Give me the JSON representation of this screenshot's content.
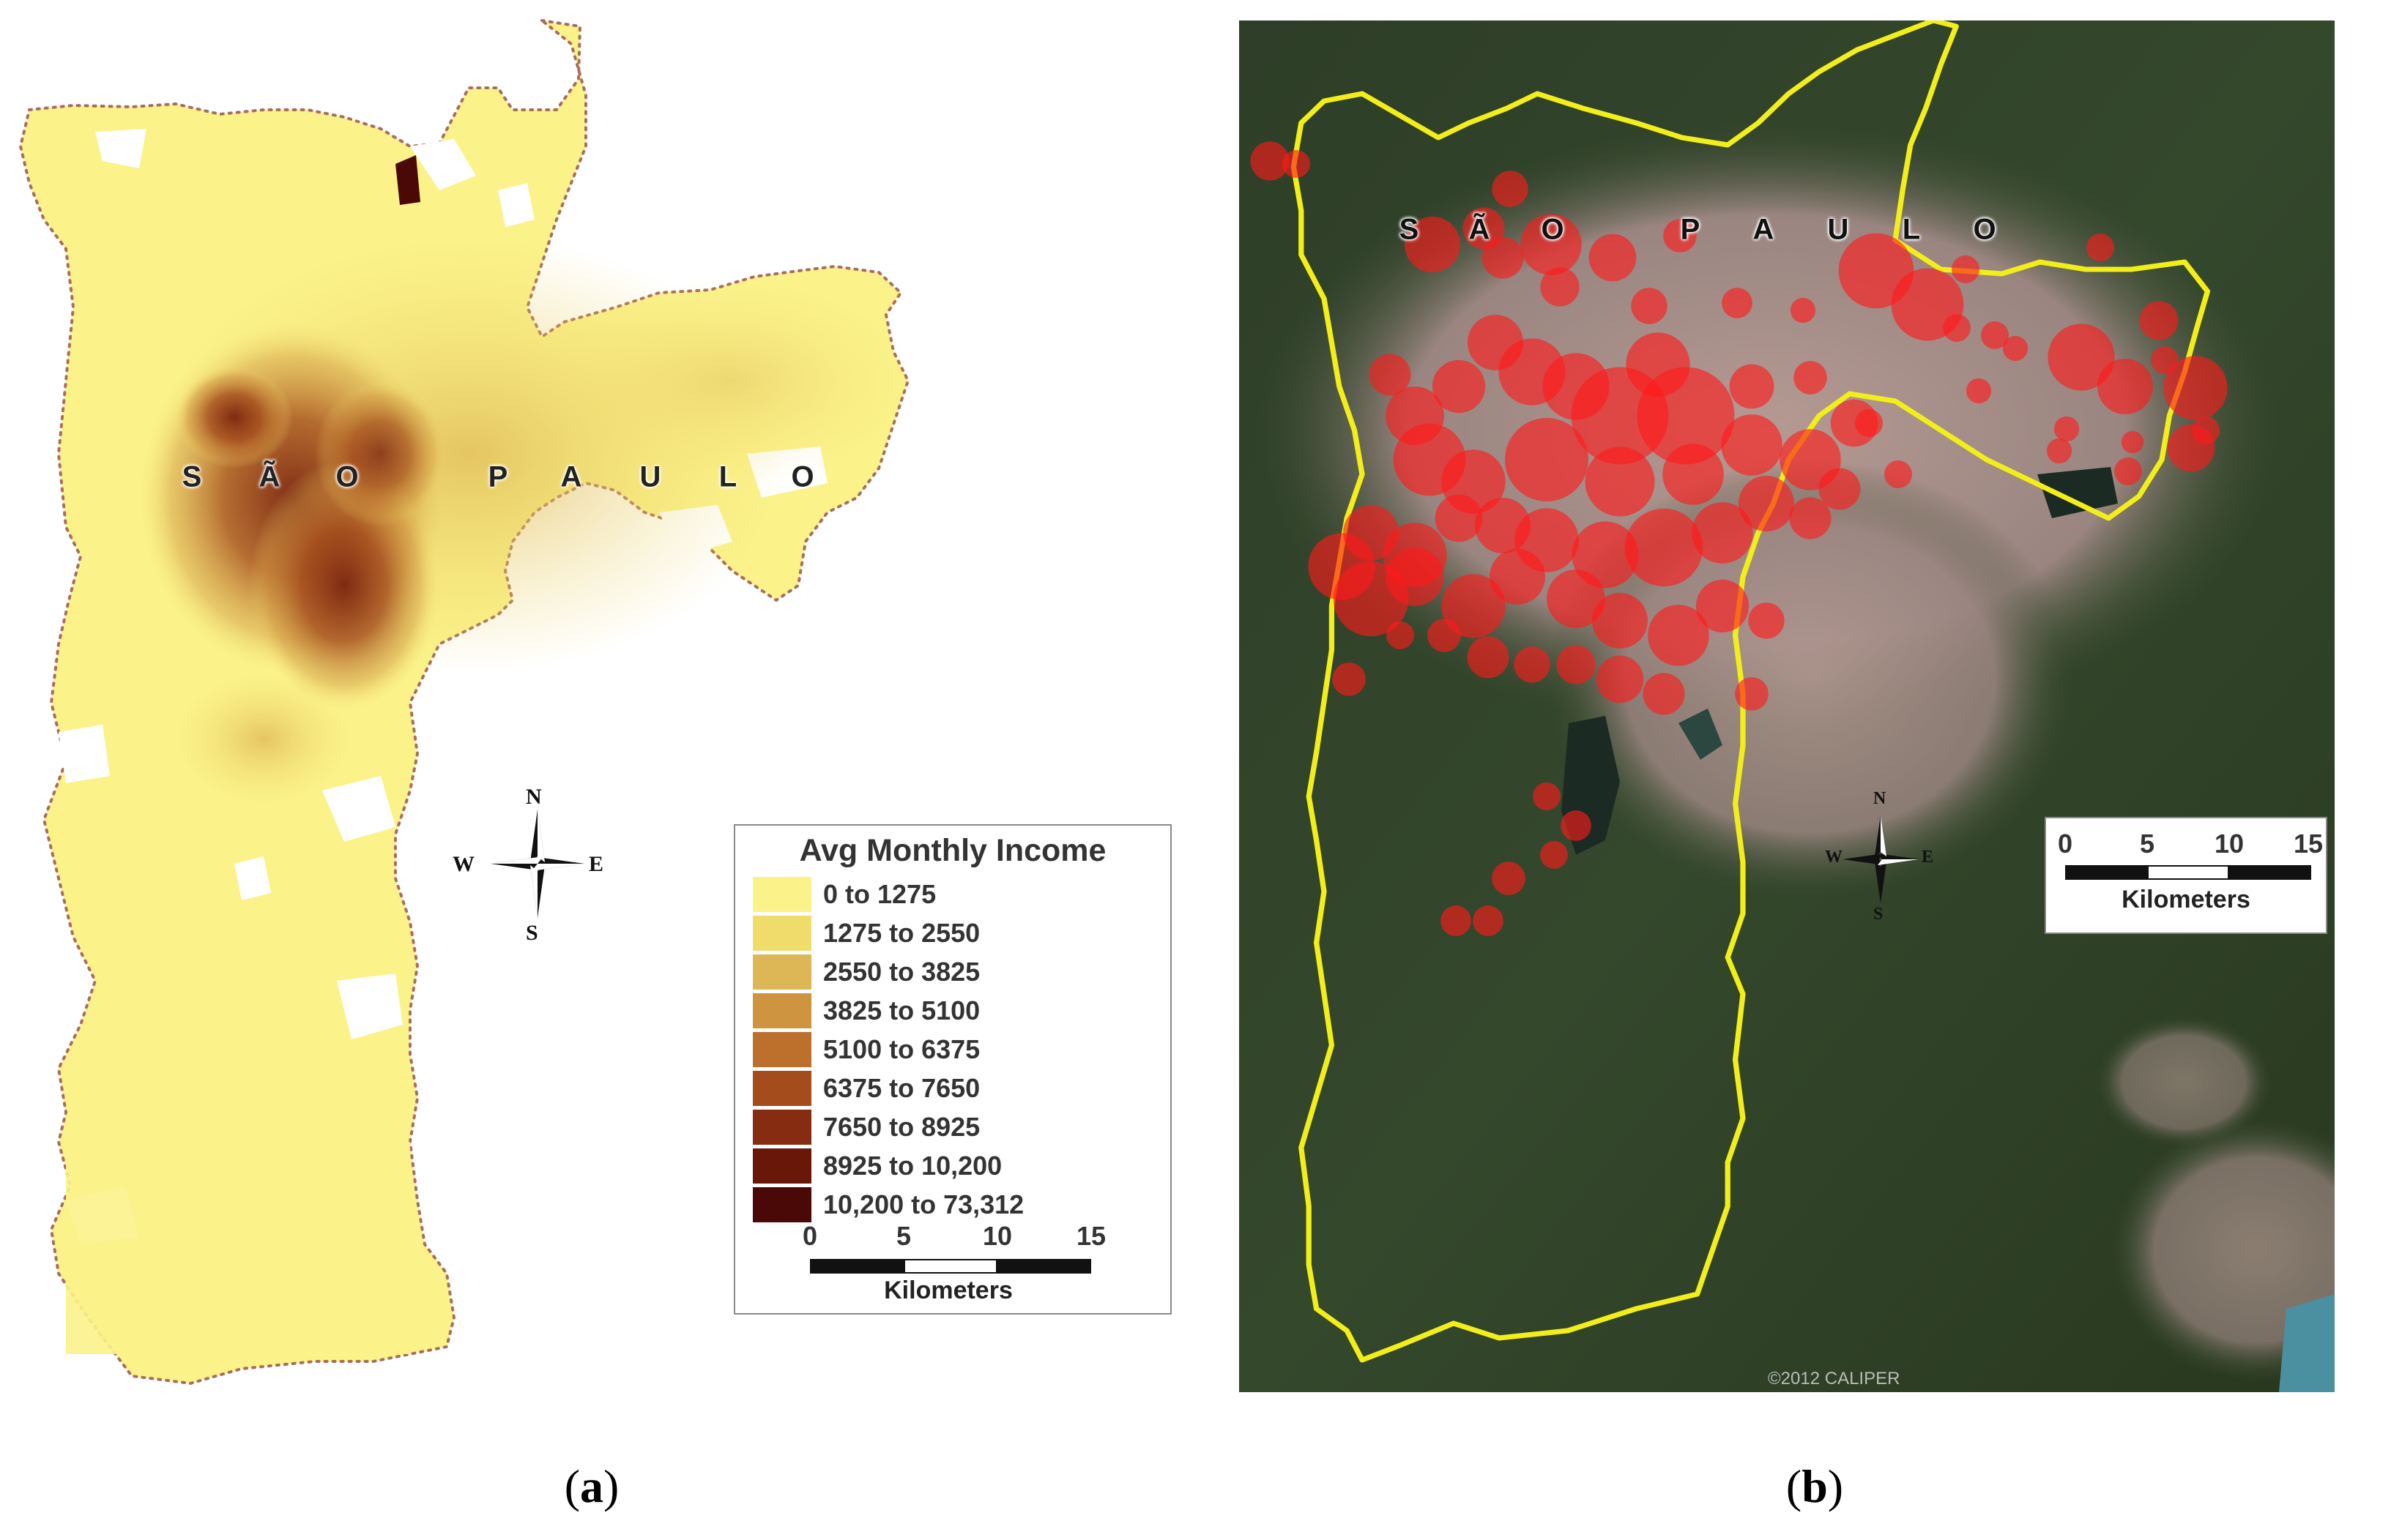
{
  "panel_a": {
    "city_letters": [
      "S",
      "Ã",
      "O",
      "P",
      "A",
      "U",
      "L",
      "O"
    ],
    "compass": {
      "n": "N",
      "s": "S",
      "e": "E",
      "w": "W"
    },
    "legend": {
      "title": "Avg Monthly Income",
      "classes": [
        {
          "label": "0 to 1275",
          "color": "#fbf28a"
        },
        {
          "label": "1275 to 2550",
          "color": "#f0dc6b"
        },
        {
          "label": "2550 to 3825",
          "color": "#ddb655"
        },
        {
          "label": "3825 to 5100",
          "color": "#cf9440"
        },
        {
          "label": "5100 to 6375",
          "color": "#bd6f2c"
        },
        {
          "label": "6375 to 7650",
          "color": "#a44c1c"
        },
        {
          "label": "7650 to 8925",
          "color": "#862c10"
        },
        {
          "label": "8925 to 10,200",
          "color": "#681709"
        },
        {
          "label": "10,200 to 73,312",
          "color": "#4a0806"
        }
      ]
    },
    "scale": {
      "ticks": [
        "0",
        "5",
        "10",
        "15"
      ],
      "unit": "Kilometers"
    },
    "caption": {
      "open": "(",
      "letter": "a",
      "close": ")"
    }
  },
  "panel_b": {
    "city_letters": [
      "S",
      "Ã",
      "O",
      "P",
      "A",
      "U",
      "L",
      "O"
    ],
    "compass": {
      "n": "N",
      "s": "S",
      "e": "E",
      "w": "W"
    },
    "scale": {
      "ticks": [
        "0",
        "5",
        "10",
        "15"
      ],
      "unit": "Kilometers"
    },
    "copyright": "©2012 CALIPER",
    "caption": {
      "open": "(",
      "letter": "b",
      "close": ")"
    },
    "boundary_color": "#f2ee1a",
    "circle_color": "#ff1a1a"
  }
}
